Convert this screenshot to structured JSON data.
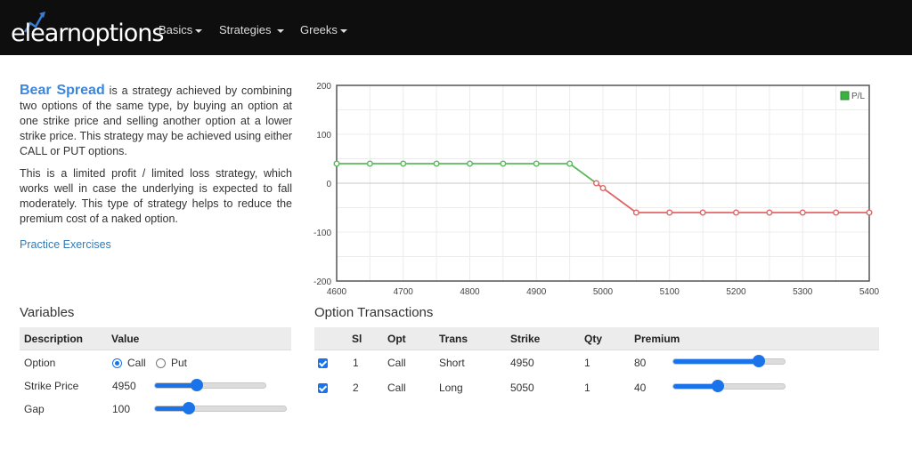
{
  "nav": {
    "brand": "elearnoptions",
    "items": [
      {
        "label": "Basics"
      },
      {
        "label": "Strategies"
      },
      {
        "label": "Greeks"
      }
    ]
  },
  "intro": {
    "title": "Bear Spread",
    "p1": " is a strategy achieved by combining two options of the same type, by buying an option at one strike price and selling another option at a lower strike price. This strategy may be achieved using either CALL or PUT options.",
    "p2": "This is a limited profit / limited loss strategy, which works well in case the underlying is expected to fall moderately. This type of strategy helps to reduce the premium cost of a naked option.",
    "practice_link": "Practice Exercises"
  },
  "chart_data": {
    "type": "line",
    "title": "",
    "xlabel": "",
    "ylabel": "",
    "legend": "top-right",
    "grid": true,
    "xlim": [
      4600,
      5400
    ],
    "ylim": [
      -200,
      200
    ],
    "x_ticks": [
      4600,
      4700,
      4800,
      4900,
      5000,
      5100,
      5200,
      5300,
      5400
    ],
    "y_ticks": [
      200,
      100,
      0,
      -100,
      -200
    ],
    "colors": {
      "profit": "#5cb85c",
      "loss": "#e06666",
      "legend_box": "#3cb043"
    },
    "series": [
      {
        "name": "P/L",
        "x": [
          4600,
          4650,
          4700,
          4750,
          4800,
          4850,
          4900,
          4950,
          4990,
          5000,
          5050,
          5100,
          5150,
          5200,
          5250,
          5300,
          5350,
          5400
        ],
        "y": [
          40,
          40,
          40,
          40,
          40,
          40,
          40,
          40,
          0,
          -10,
          -60,
          -60,
          -60,
          -60,
          -60,
          -60,
          -60,
          -60
        ]
      }
    ]
  },
  "variables": {
    "title": "Variables",
    "headers": [
      "Description",
      "Value"
    ],
    "option": {
      "label": "Option",
      "choices": [
        "Call",
        "Put"
      ],
      "selected": "Call"
    },
    "strike": {
      "label": "Strike Price",
      "value": "4950",
      "fraction": 0.38
    },
    "gap": {
      "label": "Gap",
      "value": "100",
      "fraction": 0.26
    }
  },
  "transactions": {
    "title": "Option Transactions",
    "headers": [
      "Sl",
      "Opt",
      "Trans",
      "Strike",
      "Qty",
      "Premium"
    ],
    "rows": [
      {
        "sl": "1",
        "opt": "Call",
        "trans": "Short",
        "strike": "4950",
        "qty": "1",
        "premium": "80",
        "fraction": 0.77
      },
      {
        "sl": "2",
        "opt": "Call",
        "trans": "Long",
        "strike": "5050",
        "qty": "1",
        "premium": "40",
        "fraction": 0.4
      }
    ]
  }
}
